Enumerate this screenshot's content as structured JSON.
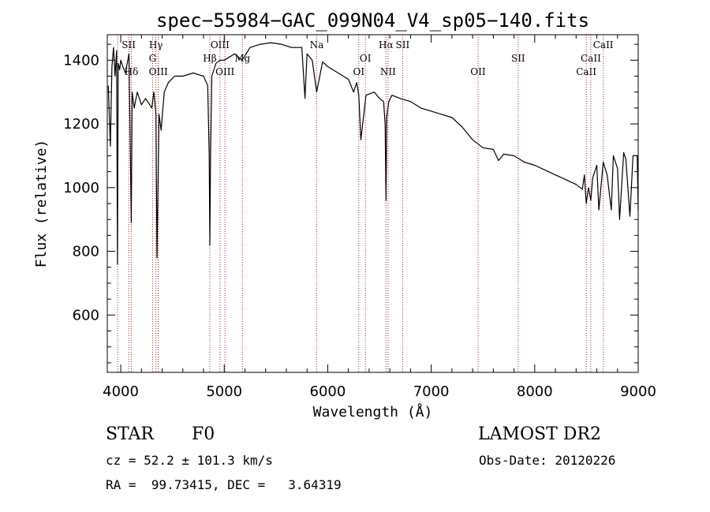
{
  "chart_data": {
    "type": "line",
    "title": "spec−55984−GAC_099N04_V4_sp05−140.fits",
    "xlabel": "Wavelength (Å)",
    "ylabel": "Flux (relative)",
    "xlim": [
      3870,
      9000
    ],
    "ylim": [
      420,
      1480
    ],
    "xticks": [
      4000,
      5000,
      6000,
      7000,
      8000,
      9000
    ],
    "yticks": [
      600,
      800,
      1000,
      1200,
      1400
    ],
    "grid": false,
    "line_color": "#000000",
    "marker_color": "#b22222",
    "series": [
      {
        "x": [
          3880,
          3900,
          3915,
          3930,
          3945,
          3960,
          3968,
          3975,
          3990,
          4000,
          4020,
          4045,
          4080,
          4102,
          4110,
          4130,
          4160,
          4200,
          4240,
          4280,
          4300,
          4320,
          4340,
          4350,
          4370,
          4390,
          4420,
          4460,
          4520,
          4600,
          4700,
          4800,
          4840,
          4855,
          4861,
          4868,
          4880,
          4920,
          4960,
          5000,
          5050,
          5100,
          5172,
          5250,
          5350,
          5450,
          5550,
          5650,
          5750,
          5780,
          5800,
          5850,
          5893,
          5950,
          6000,
          6100,
          6200,
          6250,
          6280,
          6300,
          6320,
          6370,
          6450,
          6500,
          6540,
          6555,
          6563,
          6570,
          6590,
          6620,
          6700,
          6800,
          6900,
          7000,
          7100,
          7200,
          7300,
          7400,
          7500,
          7600,
          7650,
          7700,
          7800,
          7900,
          8000,
          8100,
          8200,
          8300,
          8400,
          8460,
          8480,
          8498,
          8520,
          8542,
          8560,
          8600,
          8620,
          8662,
          8700,
          8740,
          8760,
          8800,
          8820,
          8860,
          8880,
          8920,
          8950,
          8990,
          9000
        ],
        "values": [
          1320,
          1130,
          1380,
          1440,
          1350,
          1430,
          760,
          1390,
          1370,
          1400,
          1380,
          1360,
          1420,
          890,
          1300,
          1250,
          1300,
          1260,
          1280,
          1260,
          1250,
          1300,
          1230,
          780,
          1230,
          1180,
          1300,
          1330,
          1350,
          1350,
          1360,
          1350,
          1320,
          1100,
          820,
          1100,
          1350,
          1390,
          1400,
          1400,
          1410,
          1420,
          1400,
          1440,
          1450,
          1455,
          1450,
          1440,
          1440,
          1280,
          1420,
          1400,
          1300,
          1395,
          1380,
          1360,
          1340,
          1300,
          1330,
          1290,
          1150,
          1290,
          1300,
          1280,
          1270,
          1200,
          960,
          1220,
          1270,
          1290,
          1280,
          1270,
          1250,
          1240,
          1230,
          1220,
          1190,
          1150,
          1125,
          1120,
          1085,
          1105,
          1100,
          1080,
          1070,
          1055,
          1040,
          1025,
          1010,
          995,
          1040,
          950,
          1000,
          960,
          1030,
          1070,
          930,
          1080,
          1040,
          930,
          1100,
          1060,
          900,
          1110,
          1090,
          910,
          1100,
          1100,
          930
        ]
      }
    ],
    "lines": [
      {
        "x": 3970,
        "label": "",
        "label_pos": "top"
      },
      {
        "x": 4077,
        "label": "SII",
        "label_pos": "top"
      },
      {
        "x": 4102,
        "label": "Hδ",
        "label_pos": "bottom"
      },
      {
        "x": 4308,
        "label": "G",
        "label_pos": "middle"
      },
      {
        "x": 4340,
        "label": "Hγ",
        "label_pos": "top"
      },
      {
        "x": 4363,
        "label": "OIII",
        "label_pos": "bottom"
      },
      {
        "x": 4861,
        "label": "Hβ",
        "label_pos": "middle"
      },
      {
        "x": 4959,
        "label": "OIII",
        "label_pos": "top"
      },
      {
        "x": 5007,
        "label": "OIII",
        "label_pos": "bottom"
      },
      {
        "x": 5175,
        "label": "Mg",
        "label_pos": "middle"
      },
      {
        "x": 5893,
        "label": "Na",
        "label_pos": "top"
      },
      {
        "x": 6300,
        "label": "OI",
        "label_pos": "bottom"
      },
      {
        "x": 6364,
        "label": "OI",
        "label_pos": "middle"
      },
      {
        "x": 6563,
        "label": "Hα",
        "label_pos": "top"
      },
      {
        "x": 6583,
        "label": "NII",
        "label_pos": "bottom"
      },
      {
        "x": 6724,
        "label": "SII",
        "label_pos": "top"
      },
      {
        "x": 7452,
        "label": "OII",
        "label_pos": "bottom"
      },
      {
        "x": 7840,
        "label": "SII",
        "label_pos": "middle"
      },
      {
        "x": 8498,
        "label": "CaII",
        "label_pos": "bottom"
      },
      {
        "x": 8542,
        "label": "CaII",
        "label_pos": "middle"
      },
      {
        "x": 8662,
        "label": "CaII",
        "label_pos": "top"
      }
    ]
  },
  "info": {
    "obj_class": "STAR",
    "subclass": "F0",
    "survey": "LAMOST DR2",
    "cz": "cz = 52.2 ± 101.3 km/s",
    "obs_date": "Obs-Date: 20120226",
    "radec": "RA =  99.73415, DEC =   3.64319"
  }
}
